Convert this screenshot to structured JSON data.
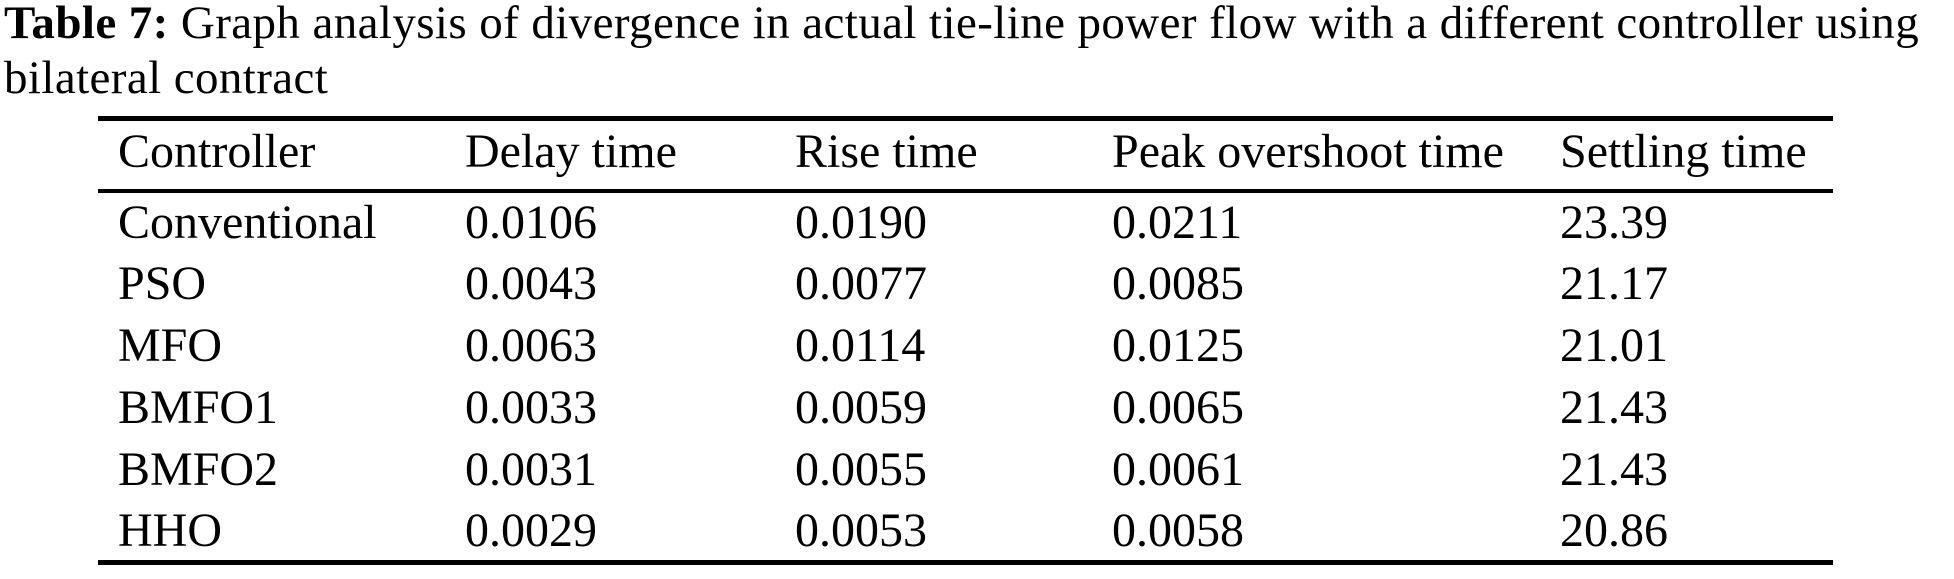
{
  "caption": {
    "label": "Table 7:",
    "line1_rest": " Graph analysis of divergence in actual tie-line power flow with a different controller using",
    "line2": "bilateral contract"
  },
  "table": {
    "columns": [
      "Controller",
      "Delay time",
      "Rise time",
      "Peak overshoot time",
      "Settling time"
    ],
    "rows": [
      {
        "controller": "Conventional",
        "delay": "0.0106",
        "rise": "0.0190",
        "peak_overshoot": "0.0211",
        "settling": "23.39"
      },
      {
        "controller": "PSO",
        "delay": "0.0043",
        "rise": "0.0077",
        "peak_overshoot": "0.0085",
        "settling": "21.17"
      },
      {
        "controller": "MFO",
        "delay": "0.0063",
        "rise": "0.0114",
        "peak_overshoot": "0.0125",
        "settling": "21.01"
      },
      {
        "controller": "BMFO1",
        "delay": "0.0033",
        "rise": "0.0059",
        "peak_overshoot": "0.0065",
        "settling": "21.43"
      },
      {
        "controller": "BMFO2",
        "delay": "0.0031",
        "rise": "0.0055",
        "peak_overshoot": "0.0061",
        "settling": "21.43"
      },
      {
        "controller": "HHO",
        "delay": "0.0029",
        "rise": "0.0053",
        "peak_overshoot": "0.0058",
        "settling": "20.86"
      }
    ]
  },
  "colors": {
    "text": "#000000",
    "background": "#ffffff",
    "rule": "#000000"
  }
}
